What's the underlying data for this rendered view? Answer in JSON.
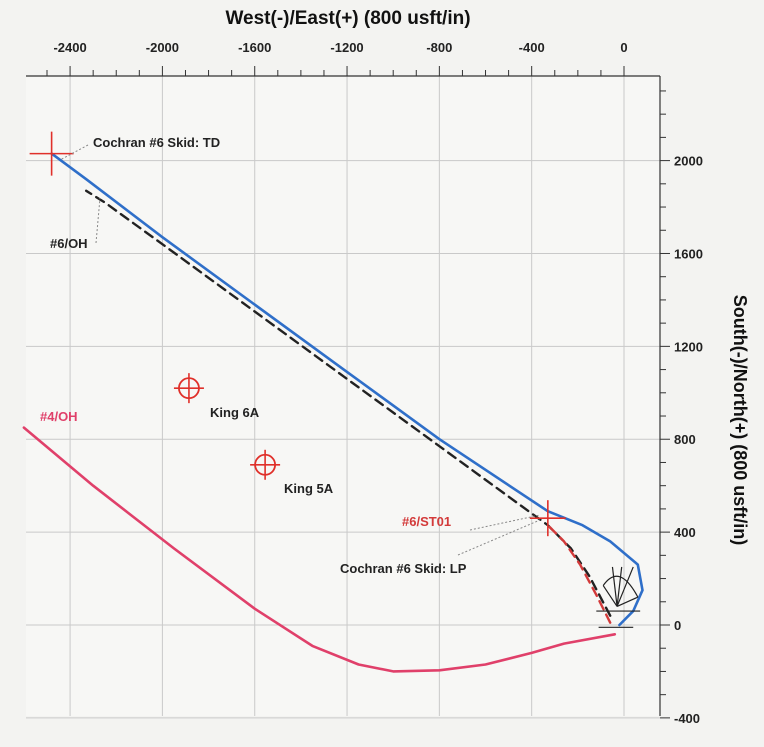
{
  "chart_data": {
    "type": "line",
    "xlabel": "West(-)/East(+) (800 usft/in)",
    "ylabel": "South(-)/North(+) (800 usft/in)",
    "xlim": [
      -2550,
      100
    ],
    "ylim": [
      -430,
      2420
    ],
    "x_ticks": [
      -2400,
      -2000,
      -1600,
      -1200,
      -800,
      -400,
      0
    ],
    "y_ticks": [
      2000,
      1600,
      1200,
      800,
      400,
      0,
      -400
    ],
    "series": [
      {
        "name": "#6/OH",
        "color": "#2f6fc9",
        "style": "solid",
        "x": [
          -20,
          40,
          80,
          60,
          -60,
          -180,
          -330,
          -800,
          -1200,
          -1600,
          -2000,
          -2330,
          -2480
        ],
        "y": [
          0,
          60,
          150,
          260,
          360,
          430,
          490,
          800,
          1090,
          1380,
          1670,
          1920,
          2030
        ]
      },
      {
        "name": "",
        "color": "#222222",
        "style": "dashed",
        "x": [
          -60,
          -150,
          -230,
          -330,
          -800,
          -1200,
          -1600,
          -2000,
          -2250,
          -2330
        ],
        "y": [
          40,
          210,
          330,
          430,
          770,
          1060,
          1350,
          1640,
          1820,
          1870
        ]
      },
      {
        "name": "#6/ST01",
        "color": "#d33a3a",
        "style": "dashed",
        "x": [
          -60,
          -120,
          -190,
          -260,
          -330
        ],
        "y": [
          10,
          130,
          260,
          360,
          430
        ]
      },
      {
        "name": "#4/OH",
        "color": "#e0406a",
        "style": "solid",
        "x": [
          -2600,
          -2300,
          -1950,
          -1600,
          -1350,
          -1150,
          -1000,
          -800,
          -600,
          -400,
          -260,
          -40
        ],
        "y": [
          850,
          600,
          330,
          70,
          -90,
          -170,
          -200,
          -195,
          -170,
          -120,
          -80,
          -40
        ]
      }
    ],
    "targets": [
      {
        "label": "Cochran #6 Skid: TD",
        "x": -2480,
        "y": 2030
      },
      {
        "label": "Cochran #6 Skid: LP",
        "x": -330,
        "y": 460
      },
      {
        "label": "King 6A",
        "x": -1885,
        "y": 1020
      },
      {
        "label": "King 5A",
        "x": -1555,
        "y": 690
      }
    ],
    "annotations": [
      {
        "text": "Cochran #6 Skid: TD",
        "color": "#222222"
      },
      {
        "text": "#6/OH",
        "color": "#222222"
      },
      {
        "text": "#4/OH",
        "color": "#e0406a"
      },
      {
        "text": "King 6A",
        "color": "#222222"
      },
      {
        "text": "King 5A",
        "color": "#222222"
      },
      {
        "text": "#6/ST01",
        "color": "#d33a3a"
      },
      {
        "text": "Cochran #6 Skid: LP",
        "color": "#222222"
      }
    ],
    "grid": true
  }
}
